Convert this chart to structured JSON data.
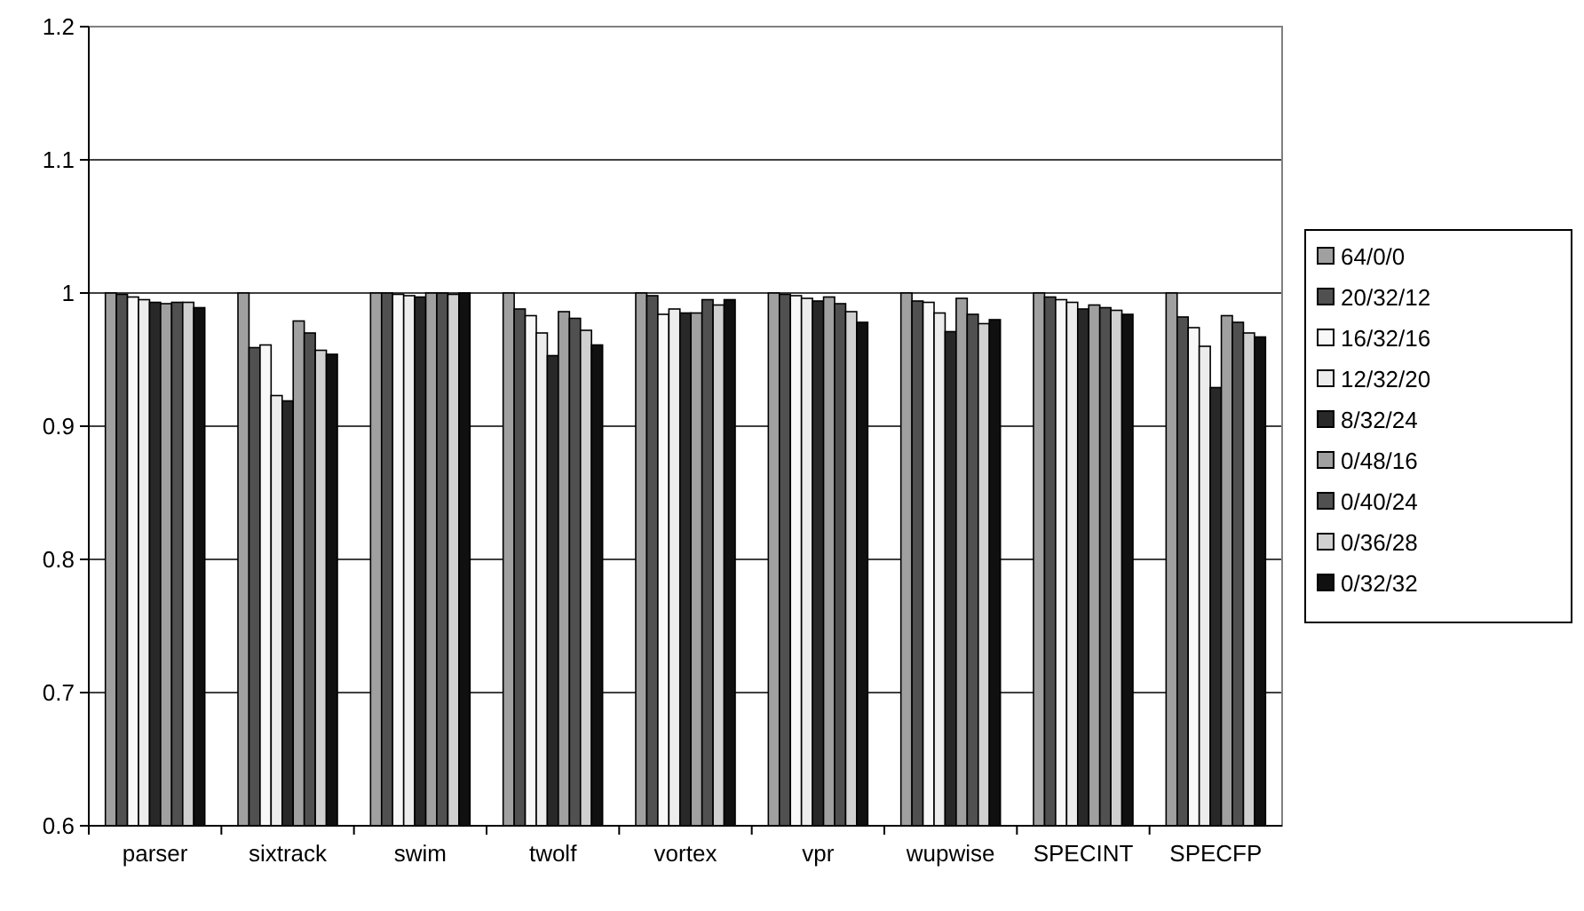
{
  "chart_data": {
    "type": "bar",
    "categories": [
      "parser",
      "sixtrack",
      "swim",
      "twolf",
      "vortex",
      "vpr",
      "wupwise",
      "SPECINT",
      "SPECFP"
    ],
    "series": [
      {
        "name": "64/0/0",
        "color": "#a0a0a0",
        "values": [
          1,
          1,
          1,
          1,
          1,
          1,
          1,
          1,
          1
        ]
      },
      {
        "name": "20/32/12",
        "color": "#505050",
        "values": [
          0.999,
          0.959,
          1,
          0.988,
          0.998,
          0.999,
          0.994,
          0.997,
          0.982
        ]
      },
      {
        "name": "16/32/16",
        "color": "#f8f8f8",
        "values": [
          0.997,
          0.961,
          0.999,
          0.983,
          0.984,
          0.998,
          0.993,
          0.995,
          0.974
        ]
      },
      {
        "name": "12/32/20",
        "color": "#ececec",
        "values": [
          0.995,
          0.923,
          0.998,
          0.97,
          0.988,
          0.996,
          0.985,
          0.993,
          0.96
        ]
      },
      {
        "name": "8/32/24",
        "color": "#282828",
        "values": [
          0.993,
          0.919,
          0.997,
          0.953,
          0.985,
          0.994,
          0.971,
          0.988,
          0.929
        ]
      },
      {
        "name": "0/48/16",
        "color": "#a0a0a0",
        "values": [
          0.992,
          0.979,
          1,
          0.986,
          0.985,
          0.997,
          0.996,
          0.991,
          0.983
        ]
      },
      {
        "name": "0/40/24",
        "color": "#505050",
        "values": [
          0.993,
          0.97,
          1,
          0.981,
          0.995,
          0.992,
          0.984,
          0.989,
          0.978
        ]
      },
      {
        "name": "0/36/28",
        "color": "#d0d0d0",
        "values": [
          0.993,
          0.957,
          0.999,
          0.972,
          0.991,
          0.986,
          0.977,
          0.987,
          0.97
        ]
      },
      {
        "name": "0/32/32",
        "color": "#101010",
        "values": [
          0.989,
          0.954,
          1,
          0.961,
          0.995,
          0.978,
          0.98,
          0.984,
          0.967
        ]
      }
    ],
    "ylim": [
      0.6,
      1.2
    ],
    "yticks": [
      {
        "value": 0.6,
        "label": "0.6"
      },
      {
        "value": 0.7,
        "label": "0.7"
      },
      {
        "value": 0.8,
        "label": "0.8"
      },
      {
        "value": 0.9,
        "label": "0.9"
      },
      {
        "value": 1,
        "label": "1"
      },
      {
        "value": 1.1,
        "label": "1.1"
      },
      {
        "value": 1.2,
        "label": "1.2"
      }
    ],
    "grid": "y",
    "legend": "right"
  }
}
